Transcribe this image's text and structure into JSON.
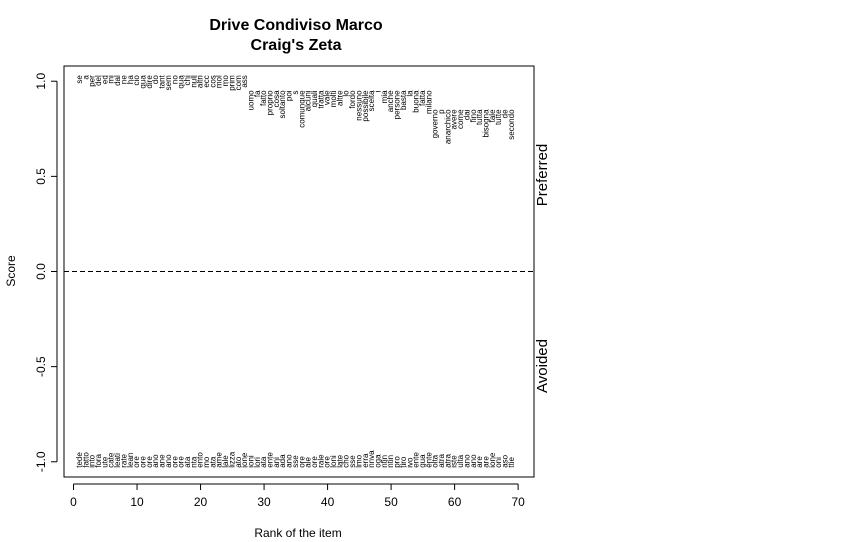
{
  "chart_data": {
    "type": "scatter",
    "title": "Drive Condiviso Marco",
    "subtitle": "Craig's Zeta",
    "xlabel": "Rank of the item",
    "ylabel": "Score",
    "xlim": [
      -1.5,
      72.5
    ],
    "ylim": [
      -1.08,
      1.08
    ],
    "x_ticks": [
      0,
      10,
      20,
      30,
      40,
      50,
      60,
      70
    ],
    "y_ticks": [
      -1.0,
      -0.5,
      0.0,
      0.5,
      1.0
    ],
    "reference_line": {
      "y": 0,
      "style": "dashed"
    },
    "side_labels": {
      "top": "Preferred",
      "bottom": "Avoided"
    },
    "preferred": [
      {
        "rank": 1,
        "word": "se",
        "score": 1.0
      },
      {
        "rank": 2,
        "word": "a",
        "score": 1.0
      },
      {
        "rank": 3,
        "word": "per",
        "score": 1.0
      },
      {
        "rank": 4,
        "word": "del",
        "score": 1.0
      },
      {
        "rank": 5,
        "word": "ed",
        "score": 1.0
      },
      {
        "rank": 6,
        "word": "mi",
        "score": 1.0
      },
      {
        "rank": 7,
        "word": "dal",
        "score": 1.0
      },
      {
        "rank": 8,
        "word": "ne",
        "score": 1.0
      },
      {
        "rank": 9,
        "word": "ha",
        "score": 1.0
      },
      {
        "rank": 10,
        "word": "cio",
        "score": 1.0
      },
      {
        "rank": 11,
        "word": "qua",
        "score": 1.0
      },
      {
        "rank": 12,
        "word": "dire",
        "score": 1.0
      },
      {
        "rank": 13,
        "word": "do",
        "score": 1.0
      },
      {
        "rank": 14,
        "word": "tant",
        "score": 1.0
      },
      {
        "rank": 15,
        "word": "sem",
        "score": 1.0
      },
      {
        "rank": 16,
        "word": "no",
        "score": 1.0
      },
      {
        "rank": 17,
        "word": "qua",
        "score": 1.0
      },
      {
        "rank": 18,
        "word": "chi",
        "score": 1.0
      },
      {
        "rank": 19,
        "word": "null",
        "score": 1.0
      },
      {
        "rank": 20,
        "word": "altri",
        "score": 1.0
      },
      {
        "rank": 21,
        "word": "ecc",
        "score": 1.0
      },
      {
        "rank": 22,
        "word": "cos",
        "score": 1.0
      },
      {
        "rank": 23,
        "word": "mol",
        "score": 1.0
      },
      {
        "rank": 24,
        "word": "mo",
        "score": 1.0
      },
      {
        "rank": 25,
        "word": "prim",
        "score": 1.0
      },
      {
        "rank": 26,
        "word": "com",
        "score": 1.0
      },
      {
        "rank": 27,
        "word": "ass",
        "score": 1.0
      },
      {
        "rank": 28,
        "word": "uomo",
        "score": 0.92
      },
      {
        "rank": 29,
        "word": "fa",
        "score": 0.92
      },
      {
        "rank": 30,
        "word": "fatto",
        "score": 0.92
      },
      {
        "rank": 31,
        "word": "proprio",
        "score": 0.92
      },
      {
        "rank": 32,
        "word": "cosa",
        "score": 0.92
      },
      {
        "rank": 33,
        "word": "soltanto",
        "score": 0.92
      },
      {
        "rank": 34,
        "word": "poi",
        "score": 0.92
      },
      {
        "rank": 35,
        "word": "s",
        "score": 0.92
      },
      {
        "rank": 36,
        "word": "comunque",
        "score": 0.92
      },
      {
        "rank": 37,
        "word": "alcuni",
        "score": 0.92
      },
      {
        "rank": 38,
        "word": "quali",
        "score": 0.92
      },
      {
        "rank": 39,
        "word": "tratta",
        "score": 0.92
      },
      {
        "rank": 40,
        "word": "vale",
        "score": 0.92
      },
      {
        "rank": 41,
        "word": "molti",
        "score": 0.92
      },
      {
        "rank": 42,
        "word": "altre",
        "score": 0.92
      },
      {
        "rank": 43,
        "word": "lo",
        "score": 0.92
      },
      {
        "rank": 44,
        "word": "fordo",
        "score": 0.92
      },
      {
        "rank": 45,
        "word": "nessuno",
        "score": 0.92
      },
      {
        "rank": 46,
        "word": "possibile",
        "score": 0.92
      },
      {
        "rank": 47,
        "word": "scelta",
        "score": 0.92
      },
      {
        "rank": 48,
        "word": "i",
        "score": 0.92
      },
      {
        "rank": 49,
        "word": "mia",
        "score": 0.92
      },
      {
        "rank": 50,
        "word": "anche",
        "score": 0.92
      },
      {
        "rank": 51,
        "word": "persone",
        "score": 0.92
      },
      {
        "rank": 52,
        "word": "basta",
        "score": 0.92
      },
      {
        "rank": 53,
        "word": "la",
        "score": 0.92
      },
      {
        "rank": 54,
        "word": "buona",
        "score": 0.92
      },
      {
        "rank": 55,
        "word": "fatta",
        "score": 0.92
      },
      {
        "rank": 56,
        "word": "milano",
        "score": 0.92
      },
      {
        "rank": 57,
        "word": "governo",
        "score": 0.82
      },
      {
        "rank": 58,
        "word": "p",
        "score": 0.82
      },
      {
        "rank": 59,
        "word": "anarchico",
        "score": 0.82
      },
      {
        "rank": 60,
        "word": "avere",
        "score": 0.82
      },
      {
        "rank": 61,
        "word": "come",
        "score": 0.82
      },
      {
        "rank": 62,
        "word": "dai",
        "score": 0.82
      },
      {
        "rank": 63,
        "word": "fino",
        "score": 0.82
      },
      {
        "rank": 64,
        "word": "tutta",
        "score": 0.82
      },
      {
        "rank": 65,
        "word": "bisogna",
        "score": 0.82
      },
      {
        "rank": 66,
        "word": "tale",
        "score": 0.82
      },
      {
        "rank": 67,
        "word": "tutte",
        "score": 0.82
      },
      {
        "rank": 68,
        "word": "de",
        "score": 0.82
      },
      {
        "rank": 69,
        "word": "secondo",
        "score": 0.82
      }
    ],
    "avoided": [
      {
        "rank": 1,
        "word": "tede",
        "score": -1.0
      },
      {
        "rank": 2,
        "word": "fatto",
        "score": -1.0
      },
      {
        "rank": 3,
        "word": "into",
        "score": -1.0
      },
      {
        "rank": 4,
        "word": "fora",
        "score": -1.0
      },
      {
        "rank": 5,
        "word": "ute",
        "score": -1.0
      },
      {
        "rank": 6,
        "word": "cate",
        "score": -1.0
      },
      {
        "rank": 7,
        "word": "leati",
        "score": -1.0
      },
      {
        "rank": 8,
        "word": "rate",
        "score": -1.0
      },
      {
        "rank": 9,
        "word": "lean",
        "score": -1.0
      },
      {
        "rank": 10,
        "word": "ore",
        "score": -1.0
      },
      {
        "rank": 11,
        "word": "ore",
        "score": -1.0
      },
      {
        "rank": 12,
        "word": "ore",
        "score": -1.0
      },
      {
        "rank": 13,
        "word": "ano",
        "score": -1.0
      },
      {
        "rank": 14,
        "word": "ane",
        "score": -1.0
      },
      {
        "rank": 15,
        "word": "ano",
        "score": -1.0
      },
      {
        "rank": 16,
        "word": "ore",
        "score": -1.0
      },
      {
        "rank": 17,
        "word": "ore",
        "score": -1.0
      },
      {
        "rank": 18,
        "word": "ata",
        "score": -1.0
      },
      {
        "rank": 19,
        "word": "nta",
        "score": -1.0
      },
      {
        "rank": 20,
        "word": "ento",
        "score": -1.0
      },
      {
        "rank": 21,
        "word": "mo",
        "score": -1.0
      },
      {
        "rank": 22,
        "word": "ata",
        "score": -1.0
      },
      {
        "rank": 23,
        "word": "ame",
        "score": -1.0
      },
      {
        "rank": 24,
        "word": "lale",
        "score": -1.0
      },
      {
        "rank": 25,
        "word": "lizza",
        "score": -1.0
      },
      {
        "rank": 26,
        "word": "ato",
        "score": -1.0
      },
      {
        "rank": 27,
        "word": "ione",
        "score": -1.0
      },
      {
        "rank": 28,
        "word": "ioni",
        "score": -1.0
      },
      {
        "rank": 29,
        "word": "lori",
        "score": -1.0
      },
      {
        "rank": 30,
        "word": "ata",
        "score": -1.0
      },
      {
        "rank": 31,
        "word": "ente",
        "score": -1.0
      },
      {
        "rank": 32,
        "word": "ani",
        "score": -1.0
      },
      {
        "rank": 33,
        "word": "ada",
        "score": -1.0
      },
      {
        "rank": 34,
        "word": "ano",
        "score": -1.0
      },
      {
        "rank": 35,
        "word": "sse",
        "score": -1.0
      },
      {
        "rank": 36,
        "word": "ore",
        "score": -1.0
      },
      {
        "rank": 37,
        "word": "ale",
        "score": -1.0
      },
      {
        "rank": 38,
        "word": "ore",
        "score": -1.0
      },
      {
        "rank": 39,
        "word": "rale",
        "score": -1.0
      },
      {
        "rank": 40,
        "word": "ore",
        "score": -1.0
      },
      {
        "rank": 41,
        "word": "loni",
        "score": -1.0
      },
      {
        "rank": 42,
        "word": "late",
        "score": -1.0
      },
      {
        "rank": 43,
        "word": "cho",
        "score": -1.0
      },
      {
        "rank": 44,
        "word": "sse",
        "score": -1.0
      },
      {
        "rank": 45,
        "word": "lmo",
        "score": -1.0
      },
      {
        "rank": 46,
        "word": "erra",
        "score": -1.0
      },
      {
        "rank": 47,
        "word": "nnva",
        "score": -1.0
      },
      {
        "rank": 48,
        "word": "oga",
        "score": -1.0
      },
      {
        "rank": 49,
        "word": "ntin",
        "score": -1.0
      },
      {
        "rank": 50,
        "word": "ntin",
        "score": -1.0
      },
      {
        "rank": 51,
        "word": "pro",
        "score": -1.0
      },
      {
        "rank": 52,
        "word": "tiro",
        "score": -1.0
      },
      {
        "rank": 53,
        "word": "ivo",
        "score": -1.0
      },
      {
        "rank": 54,
        "word": "ente",
        "score": -1.0
      },
      {
        "rank": 55,
        "word": "gua",
        "score": -1.0
      },
      {
        "rank": 56,
        "word": "ente",
        "score": -1.0
      },
      {
        "rank": 57,
        "word": "olta",
        "score": -1.0
      },
      {
        "rank": 58,
        "word": "atra",
        "score": -1.0
      },
      {
        "rank": 59,
        "word": "atra",
        "score": -1.0
      },
      {
        "rank": 60,
        "word": "iste",
        "score": -1.0
      },
      {
        "rank": 61,
        "word": "ulta",
        "score": -1.0
      },
      {
        "rank": 62,
        "word": "ano",
        "score": -1.0
      },
      {
        "rank": 63,
        "word": "ano",
        "score": -1.0
      },
      {
        "rank": 64,
        "word": "are",
        "score": -1.0
      },
      {
        "rank": 65,
        "word": "are",
        "score": -1.0
      },
      {
        "rank": 66,
        "word": "ione",
        "score": -1.0
      },
      {
        "rank": 67,
        "word": "oni",
        "score": -1.0
      },
      {
        "rank": 68,
        "word": "aso",
        "score": -1.0
      },
      {
        "rank": 69,
        "word": "ttie",
        "score": -1.0
      }
    ]
  }
}
